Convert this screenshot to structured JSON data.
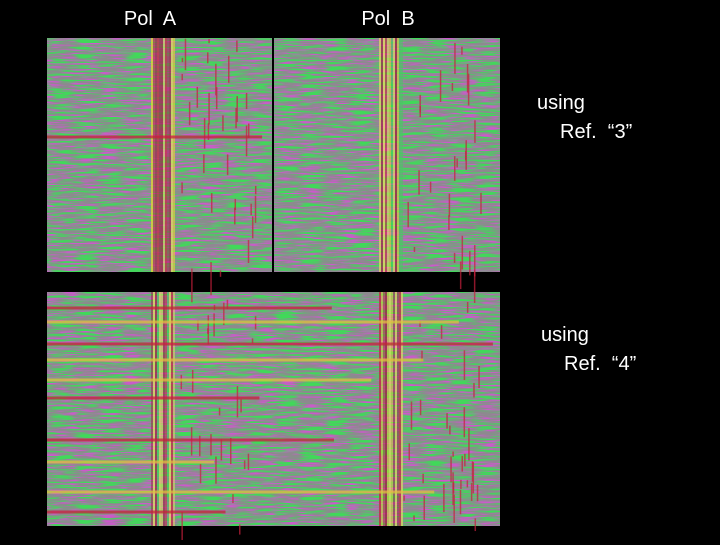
{
  "column_labels": [
    "Pol  A",
    "Pol  B"
  ],
  "rows": [
    {
      "caption_line1": "using",
      "caption_line2": "Ref.  “3”"
    },
    {
      "caption_line1": "using",
      "caption_line2": "Ref.  “4”"
    }
  ]
}
